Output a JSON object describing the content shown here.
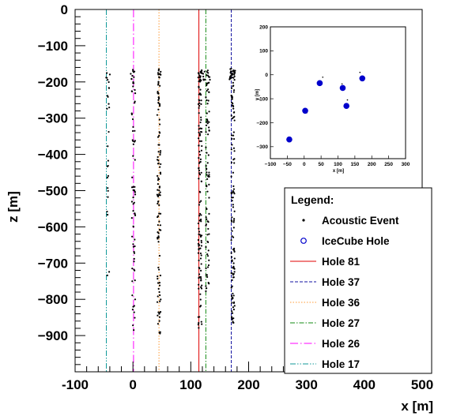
{
  "chart_data": [
    {
      "type": "scatter",
      "xlabel": "x [m]",
      "ylabel": "z [m]",
      "xlim": [
        -100,
        500
      ],
      "ylim": [
        -1000,
        0
      ],
      "x_ticks": [
        -100,
        0,
        100,
        200,
        300,
        400,
        500
      ],
      "y_ticks": [
        0,
        -100,
        -200,
        -300,
        -400,
        -500,
        -600,
        -700,
        -800,
        -900
      ],
      "grid": false,
      "legend_position": "bottom-right",
      "event_marker_color": "#000000",
      "hole_strings": [
        {
          "name": "Hole 81",
          "x": 114,
          "color": "#e00000",
          "dash": "solid"
        },
        {
          "name": "Hole 37",
          "x": 170,
          "color": "#1010a0",
          "dash": "4,2"
        },
        {
          "name": "Hole 36",
          "x": 45,
          "color": "#ff9933",
          "dash": "1.5,2"
        },
        {
          "name": "Hole 27",
          "x": 126,
          "color": "#118811",
          "dash": "6,2,1.5,2"
        },
        {
          "name": "Hole 26",
          "x": 1,
          "color": "#ff00ff",
          "dash": "10,3,1.5,3"
        },
        {
          "name": "Hole 17",
          "x": -46,
          "color": "#119999",
          "dash": "7,2,1.5,2,1.5,2"
        }
      ],
      "event_columns": [
        {
          "x": -43,
          "z_top": -170,
          "z_bottom": -760,
          "spread": 2,
          "count": 22
        },
        {
          "x": 1,
          "z_top": -165,
          "z_bottom": -905,
          "spread": 3,
          "count": 70
        },
        {
          "x": 45,
          "z_top": -165,
          "z_bottom": -920,
          "spread": 3,
          "count": 110
        },
        {
          "x": 116,
          "z_top": -165,
          "z_bottom": -885,
          "spread": 3,
          "count": 120
        },
        {
          "x": 129,
          "z_top": -165,
          "z_bottom": -785,
          "spread": 3,
          "count": 80
        },
        {
          "x": 173,
          "z_top": -163,
          "z_bottom": -875,
          "spread": 3,
          "count": 120
        }
      ],
      "event_clusters": [
        {
          "x": 120,
          "z": -170
        },
        {
          "x": 172,
          "z": -170
        }
      ],
      "legend": {
        "title": "Legend:",
        "entries": [
          {
            "label": "Acoustic Event",
            "marker": "dot"
          },
          {
            "label": "IceCube Hole",
            "marker": "open-circle"
          },
          {
            "label": "Hole 81",
            "ref": 0
          },
          {
            "label": "Hole 37",
            "ref": 1
          },
          {
            "label": "Hole 36",
            "ref": 2
          },
          {
            "label": "Hole 27",
            "ref": 3
          },
          {
            "label": "Hole 26",
            "ref": 4
          },
          {
            "label": "Hole 17",
            "ref": 5
          }
        ]
      }
    },
    {
      "type": "scatter",
      "title": "",
      "xlabel": "x [m]",
      "ylabel": "y [m]",
      "xlim": [
        -100,
        300
      ],
      "ylim": [
        -350,
        200
      ],
      "x_ticks": [
        -100,
        -50,
        0,
        50,
        100,
        150,
        200,
        250,
        300
      ],
      "y_ticks": [
        200,
        100,
        0,
        -100,
        -200,
        -300
      ],
      "hole_color": "#0000cc",
      "holes": [
        {
          "x": -44,
          "y": -270
        },
        {
          "x": 3,
          "y": -150
        },
        {
          "x": 46,
          "y": -35
        },
        {
          "x": 114,
          "y": -55
        },
        {
          "x": 125,
          "y": -130
        },
        {
          "x": 172,
          "y": -15
        }
      ],
      "events": [
        {
          "x": -46,
          "y": -262
        },
        {
          "x": -38,
          "y": -273
        },
        {
          "x": 0,
          "y": -142
        },
        {
          "x": 8,
          "y": -158
        },
        {
          "x": 42,
          "y": -30
        },
        {
          "x": 50,
          "y": -40
        },
        {
          "x": 55,
          "y": -10
        },
        {
          "x": 110,
          "y": -50
        },
        {
          "x": 116,
          "y": -62
        },
        {
          "x": 112,
          "y": -38
        },
        {
          "x": 122,
          "y": -125
        },
        {
          "x": 130,
          "y": -135
        },
        {
          "x": 128,
          "y": -105
        },
        {
          "x": 168,
          "y": -10
        },
        {
          "x": 176,
          "y": -18
        },
        {
          "x": 165,
          "y": 10
        }
      ]
    }
  ]
}
